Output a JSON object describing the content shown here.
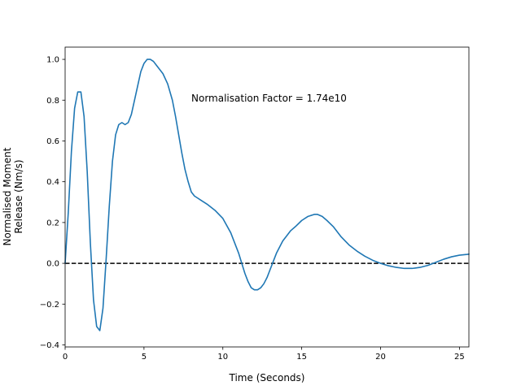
{
  "chart_data": {
    "type": "line",
    "title": "",
    "xlabel": "Time (Seconds)",
    "ylabel_lines": [
      "Normalised Moment",
      "Release (Nm/s)"
    ],
    "xlim": [
      0,
      25.6
    ],
    "ylim": [
      -0.41,
      1.06
    ],
    "xticks": [
      0,
      5,
      10,
      15,
      20,
      25
    ],
    "yticks": [
      -0.4,
      -0.2,
      0.0,
      0.2,
      0.4,
      0.6,
      0.8,
      1.0
    ],
    "xtick_labels": [
      "0",
      "5",
      "10",
      "15",
      "20",
      "25"
    ],
    "ytick_labels": [
      "−0.4",
      "−0.2",
      "0.0",
      "0.2",
      "0.4",
      "0.6",
      "0.8",
      "1.0"
    ],
    "annotation": "Normalisation Factor = 1.74e10",
    "grid": false,
    "line_color": "#1f77b4",
    "reference_line": {
      "y": 0.0,
      "style": "dashed",
      "color": "#000000"
    },
    "series": [
      {
        "x": [
          0,
          0.2,
          0.4,
          0.6,
          0.8,
          1.0,
          1.2,
          1.4,
          1.6,
          1.8,
          2.0,
          2.2,
          2.4,
          2.6,
          2.8,
          3.0,
          3.2,
          3.4,
          3.6,
          3.8,
          4.0,
          4.2,
          4.4,
          4.6,
          4.8,
          5.0,
          5.2,
          5.4,
          5.6,
          5.8,
          6.0,
          6.2,
          6.5,
          6.8,
          7.0,
          7.2,
          7.4,
          7.6,
          7.8,
          8.0,
          8.2,
          8.4,
          8.6,
          8.8,
          9.0,
          9.5,
          10.0,
          10.5,
          11.0,
          11.2,
          11.4,
          11.6,
          11.8,
          12.0,
          12.2,
          12.4,
          12.6,
          12.8,
          13.0,
          13.2,
          13.4,
          13.6,
          13.8,
          14.0,
          14.3,
          14.6,
          15.0,
          15.4,
          15.8,
          16.0,
          16.3,
          16.6,
          17.0,
          17.5,
          18.0,
          18.5,
          19.0,
          19.5,
          20.0,
          20.5,
          21.0,
          21.5,
          22.0,
          22.5,
          23.0,
          23.5,
          24.0,
          24.5,
          25.0,
          25.5,
          25.6
        ],
        "y": [
          0.0,
          0.25,
          0.55,
          0.76,
          0.84,
          0.84,
          0.72,
          0.45,
          0.1,
          -0.18,
          -0.31,
          -0.33,
          -0.22,
          0.02,
          0.28,
          0.5,
          0.63,
          0.68,
          0.69,
          0.68,
          0.69,
          0.73,
          0.8,
          0.87,
          0.94,
          0.98,
          1.0,
          1.0,
          0.99,
          0.97,
          0.95,
          0.93,
          0.88,
          0.8,
          0.72,
          0.63,
          0.54,
          0.46,
          0.4,
          0.35,
          0.33,
          0.32,
          0.31,
          0.3,
          0.29,
          0.26,
          0.22,
          0.15,
          0.05,
          0.0,
          -0.05,
          -0.09,
          -0.12,
          -0.13,
          -0.13,
          -0.12,
          -0.1,
          -0.07,
          -0.03,
          0.01,
          0.05,
          0.08,
          0.11,
          0.13,
          0.16,
          0.18,
          0.21,
          0.23,
          0.24,
          0.24,
          0.23,
          0.21,
          0.18,
          0.13,
          0.09,
          0.06,
          0.035,
          0.015,
          0.0,
          -0.012,
          -0.02,
          -0.025,
          -0.025,
          -0.02,
          -0.01,
          0.005,
          0.02,
          0.032,
          0.04,
          0.044,
          0.045
        ]
      }
    ]
  }
}
